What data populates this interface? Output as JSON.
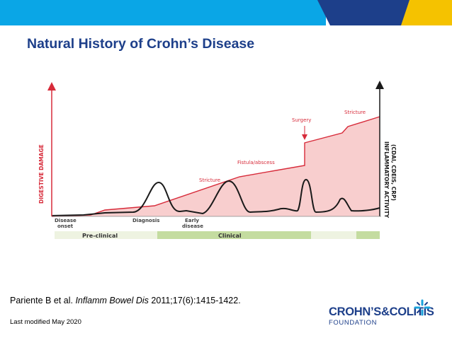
{
  "slide": {
    "title": "Natural History of Crohn’s Disease",
    "citation_author": "Pariente B et al.",
    "citation_journal": "Inflamm Bowel Dis",
    "citation_ref": "2011;17(6):1415-1422.",
    "last_modified": "Last modified May 2020"
  },
  "colors": {
    "banner_blue": "#0aa6e6",
    "banner_navy": "#1d3f8a",
    "banner_yellow": "#f5c200",
    "damage_red": "#d72b3a",
    "damage_fill": "#f7c6c6",
    "activity_black": "#1a1a1a",
    "preclinical_bar": "#eef3e1",
    "clinical_bar": "#c4dca0"
  },
  "diagram": {
    "left_axis_label": "DIGESTIVE DAMAGE",
    "right_axis_label_1": "INFLAMMATORY ACTIVITY",
    "right_axis_label_2": "(CDAI, CDEIS, CRP)",
    "events": {
      "surgery": "Surgery",
      "stricture_top": "Stricture",
      "fistula": "Fistula/abscess",
      "stricture_mid": "Stricture"
    },
    "timeline": {
      "disease_onset_1": "Disease",
      "disease_onset_2": "onset",
      "diagnosis": "Diagnosis",
      "early_disease_1": "Early",
      "early_disease_2": "disease"
    },
    "phases": {
      "preclinical": "Pre-clinical",
      "clinical": "Clinical"
    }
  },
  "logo": {
    "main": "CROHN’S&COLITIS",
    "sub": "FOUNDATION",
    "icon": "snowflake-cross-icon"
  }
}
